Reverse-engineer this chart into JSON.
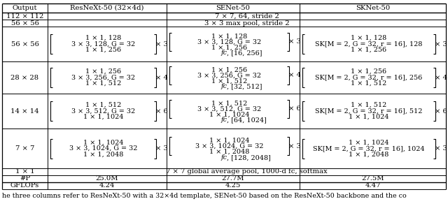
{
  "bg_color": "#ffffff",
  "header_row": [
    "Output",
    "ResNeXt-50 (32×4d)",
    "SENet-50",
    "SKNet-50"
  ],
  "row1_label": "112 × 112",
  "row1_content": "7 × 7, 64, stride 2",
  "row2_label": "56 × 56",
  "row2_content": "3 × 3 max pool, stride 2",
  "row3_output": "56 × 56",
  "row3_resnext": [
    "1 × 1, 128",
    "3 × 3, 128, G = 32",
    "1 × 1, 256"
  ],
  "row3_resnext_mul": "× 3",
  "row3_senet": [
    "1 × 1, 128",
    "3 × 3, 128, G = 32",
    "1 × 1, 256"
  ],
  "row3_senet_fc": "fc, [16, 256]",
  "row3_senet_mul": "× 3",
  "row3_sknet": [
    "1 × 1, 128",
    "SK[M = 2, G = 32, r = 16], 128",
    "1 × 1, 256"
  ],
  "row3_sknet_mul": "× 3",
  "row4_output": "28 × 28",
  "row4_resnext": [
    "1 × 1, 256",
    "3 × 3, 256, G = 32",
    "1 × 1, 512"
  ],
  "row4_resnext_mul": "× 4",
  "row4_senet": [
    "1 × 1, 256",
    "3 × 3, 256, G = 32",
    "1 × 1, 512"
  ],
  "row4_senet_fc": "fc, [32, 512]",
  "row4_senet_mul": "× 4",
  "row4_sknet": [
    "1 × 1, 256",
    "SK[M = 2, G = 32, r = 16], 256",
    "1 × 1, 512"
  ],
  "row4_sknet_mul": "× 4",
  "row5_output": "14 × 14",
  "row5_resnext": [
    "1 × 1, 512",
    "3 × 3, 512, G = 32",
    "1 × 1, 1024"
  ],
  "row5_resnext_mul": "× 6",
  "row5_senet": [
    "1 × 1, 512",
    "3 × 3, 512, G = 32",
    "1 × 1, 1024"
  ],
  "row5_senet_fc": "fc, [64, 1024]",
  "row5_senet_mul": "× 6",
  "row5_sknet": [
    "1 × 1, 512",
    "SK[M = 2, G = 32, r = 16], 512",
    "1 × 1, 1024"
  ],
  "row5_sknet_mul": "× 6",
  "row6_output": "7 × 7",
  "row6_resnext": [
    "1 × 1, 1024",
    "3 × 3, 1024, G = 32",
    "1 × 1, 2048"
  ],
  "row6_resnext_mul": "× 3",
  "row6_senet": [
    "1 × 1, 1024",
    "3 × 3, 1024, G = 32",
    "1 × 1, 2048"
  ],
  "row6_senet_fc": "fc, [128, 2048]",
  "row6_senet_mul": "× 3",
  "row6_sknet": [
    "1 × 1, 1024",
    "SK[M = 2, G = 32, r = 16], 1024",
    "1 × 1, 2048"
  ],
  "row6_sknet_mul": "× 3",
  "row7_label": "1 × 1",
  "row7_content": "7 × 7 global average pool, 1000-d fc, softmax",
  "row8": [
    "#P",
    "25.0M",
    "27.7M",
    "27.5M"
  ],
  "row9": [
    "GFLOPs",
    "4.24",
    "4.25",
    "4.47"
  ],
  "caption": "he three columns refer to ResNeXt-50 with a 32×4d template, SENet-50 based on the ResNeXt-50 backbone and the co",
  "font_size": 7.2,
  "caption_font_size": 6.8
}
